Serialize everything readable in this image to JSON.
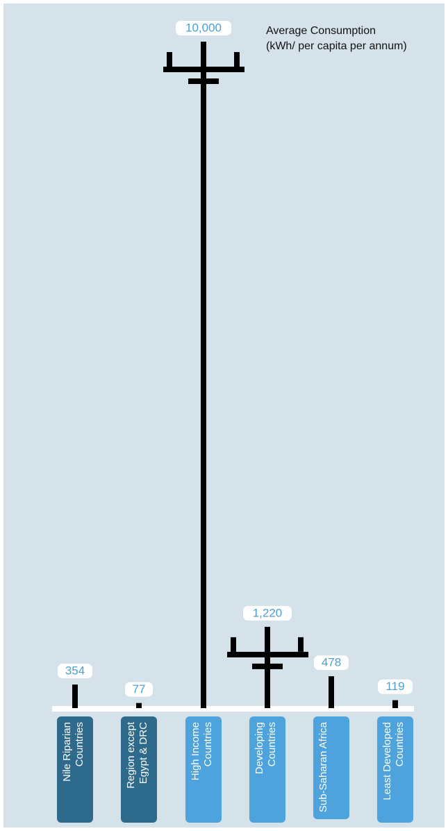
{
  "chart_data": {
    "type": "bar",
    "title": "Average Consumption",
    "subtitle": "(kWh/ per capita per annum)",
    "categories": [
      "Nile Riparian Countries",
      "Region except Egypt & DRC",
      "High Income Countries",
      "Developing Countries",
      "Sub-Saharan Africa",
      "Least Developed Countries"
    ],
    "values": [
      354,
      77,
      10000,
      1220,
      478,
      119
    ],
    "value_labels": [
      "354",
      "77",
      "10,000",
      "1,220",
      "478",
      "119"
    ],
    "color": "#000000",
    "label_color": "#4a9fd6",
    "category_colors": [
      "#2e6a8c",
      "#2e6a8c",
      "#4fa3dc",
      "#4fa3dc",
      "#4fa3dc",
      "#4fa3dc"
    ],
    "ylim": [
      0,
      10000
    ]
  }
}
